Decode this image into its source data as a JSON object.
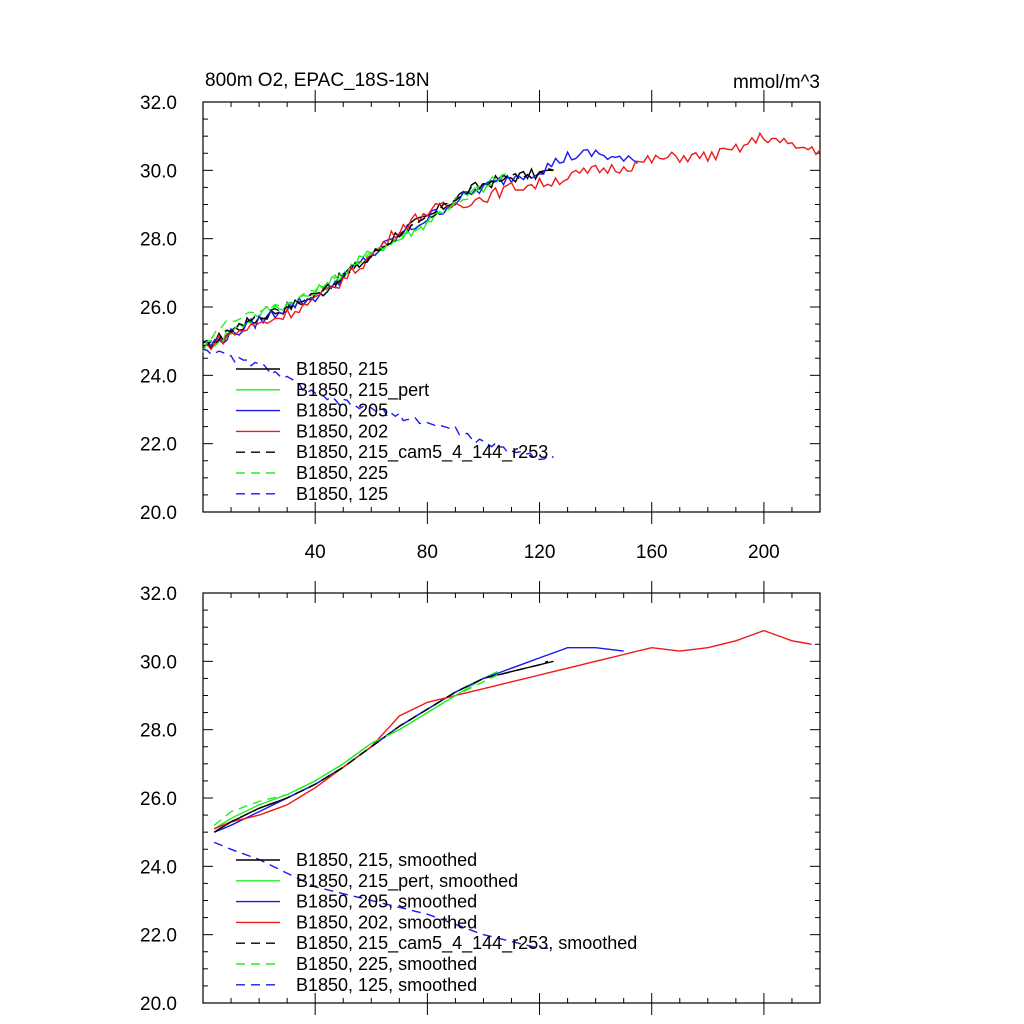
{
  "colors": {
    "black": "#000000",
    "green": "#22ee22",
    "blue": "#1a1aee",
    "red": "#ee1a1a"
  },
  "chart_data": [
    {
      "type": "line",
      "title": "800m O2, EPAC_18S-18N",
      "units": "mmol/m^3",
      "xlim": [
        0,
        220
      ],
      "ylim": [
        20,
        32
      ],
      "y_ticks": [
        "20.0",
        "22.0",
        "24.0",
        "26.0",
        "28.0",
        "30.0",
        "32.0"
      ],
      "x_ticks": [
        "40",
        "80",
        "120",
        "160",
        "200"
      ],
      "legend_position": "bottom-left",
      "series": [
        {
          "name": "B1850, 215",
          "color": "#000000",
          "dash": "solid",
          "x": [
            0,
            10,
            20,
            30,
            40,
            50,
            60,
            70,
            80,
            90,
            100,
            110,
            120,
            125
          ],
          "y": [
            24.8,
            25.3,
            25.7,
            26.0,
            26.3,
            26.9,
            27.5,
            28.2,
            28.6,
            29.2,
            29.6,
            29.8,
            29.9,
            30.0
          ]
        },
        {
          "name": "B1850, 215_pert",
          "color": "#22ee22",
          "dash": "solid",
          "x": [
            0,
            10,
            20,
            30,
            40,
            50,
            60,
            70,
            80,
            90,
            100,
            108
          ],
          "y": [
            24.8,
            25.3,
            25.8,
            26.1,
            26.4,
            27.0,
            27.6,
            28.0,
            28.5,
            29.1,
            29.5,
            29.9
          ]
        },
        {
          "name": "B1850, 205",
          "color": "#1a1aee",
          "dash": "solid",
          "x": [
            0,
            10,
            20,
            30,
            40,
            50,
            60,
            70,
            80,
            90,
            100,
            110,
            120,
            130,
            140,
            150,
            155
          ],
          "y": [
            24.8,
            25.2,
            25.6,
            26.0,
            26.3,
            26.9,
            27.5,
            28.1,
            28.6,
            29.1,
            29.5,
            29.8,
            30.0,
            30.4,
            30.5,
            30.3,
            30.2
          ]
        },
        {
          "name": "B1850, 202",
          "color": "#ee1a1a",
          "dash": "solid",
          "x": [
            0,
            10,
            20,
            30,
            40,
            50,
            60,
            70,
            80,
            90,
            100,
            110,
            120,
            130,
            140,
            150,
            160,
            170,
            180,
            190,
            200,
            210,
            220
          ],
          "y": [
            24.8,
            25.2,
            25.5,
            25.8,
            26.2,
            26.8,
            27.5,
            28.3,
            28.8,
            29.0,
            29.2,
            29.5,
            29.6,
            29.8,
            30.0,
            30.1,
            30.3,
            30.4,
            30.4,
            30.6,
            31.0,
            30.7,
            30.6
          ]
        },
        {
          "name": "B1850, 215_cam5_4_144_r253",
          "color": "#000000",
          "dash": "dashed",
          "x": [
            0,
            10,
            20,
            30,
            40,
            50,
            60,
            70,
            80,
            90,
            100,
            110,
            120,
            125
          ],
          "y": [
            24.8,
            25.3,
            25.7,
            26.0,
            26.4,
            26.9,
            27.5,
            28.1,
            28.6,
            29.2,
            29.6,
            29.8,
            29.9,
            30.0
          ]
        },
        {
          "name": "B1850, 225",
          "color": "#22ee22",
          "dash": "dashed",
          "x": [
            0,
            5,
            10,
            15,
            20,
            30,
            40,
            50,
            60,
            70,
            80,
            90,
            100,
            107
          ],
          "y": [
            24.8,
            25.3,
            25.6,
            25.8,
            25.9,
            26.1,
            26.5,
            27.0,
            27.6,
            28.0,
            28.5,
            29.0,
            29.5,
            29.8
          ]
        },
        {
          "name": "B1850, 125",
          "color": "#1a1aee",
          "dash": "dashed",
          "x": [
            0,
            10,
            20,
            30,
            40,
            50,
            60,
            70,
            80,
            90,
            100,
            110,
            115,
            120,
            125
          ],
          "y": [
            24.8,
            24.5,
            24.3,
            23.9,
            23.4,
            23.2,
            23.0,
            22.8,
            22.6,
            22.4,
            22.0,
            21.8,
            21.7,
            21.6,
            21.6
          ]
        }
      ]
    },
    {
      "type": "line",
      "title": "",
      "units": "",
      "xlim": [
        0,
        220
      ],
      "ylim": [
        20,
        32
      ],
      "y_ticks": [
        "20.0",
        "22.0",
        "24.0",
        "26.0",
        "28.0",
        "30.0",
        "32.0"
      ],
      "x_ticks": [],
      "legend_position": "bottom-left",
      "series": [
        {
          "name": "B1850, 215, smoothed",
          "color": "#000000",
          "dash": "solid",
          "x": [
            4,
            10,
            20,
            30,
            40,
            50,
            60,
            70,
            80,
            90,
            100,
            110,
            120,
            125
          ],
          "y": [
            25.0,
            25.3,
            25.7,
            26.0,
            26.4,
            26.9,
            27.5,
            28.1,
            28.6,
            29.1,
            29.5,
            29.7,
            29.9,
            30.0
          ]
        },
        {
          "name": "B1850, 215_pert, smoothed",
          "color": "#22ee22",
          "dash": "solid",
          "x": [
            4,
            10,
            20,
            30,
            40,
            50,
            60,
            70,
            80,
            90,
            100,
            105
          ],
          "y": [
            25.1,
            25.4,
            25.8,
            26.1,
            26.5,
            27.0,
            27.6,
            28.0,
            28.5,
            29.0,
            29.5,
            29.7
          ]
        },
        {
          "name": "B1850, 205, smoothed",
          "color": "#1a1aee",
          "dash": "solid",
          "x": [
            4,
            10,
            20,
            30,
            40,
            50,
            60,
            70,
            80,
            90,
            100,
            110,
            120,
            130,
            140,
            150
          ],
          "y": [
            25.0,
            25.2,
            25.6,
            26.0,
            26.4,
            26.9,
            27.5,
            28.1,
            28.6,
            29.1,
            29.5,
            29.8,
            30.1,
            30.4,
            30.4,
            30.3
          ]
        },
        {
          "name": "B1850, 202, smoothed",
          "color": "#ee1a1a",
          "dash": "solid",
          "x": [
            4,
            10,
            20,
            30,
            40,
            50,
            60,
            70,
            80,
            90,
            100,
            110,
            120,
            130,
            140,
            150,
            160,
            170,
            180,
            190,
            200,
            210,
            217
          ],
          "y": [
            25.1,
            25.3,
            25.5,
            25.8,
            26.3,
            26.9,
            27.5,
            28.4,
            28.8,
            29.0,
            29.2,
            29.4,
            29.6,
            29.8,
            30.0,
            30.2,
            30.4,
            30.3,
            30.4,
            30.6,
            30.9,
            30.6,
            30.5
          ]
        },
        {
          "name": "B1850, 215_cam5_4_144_r253, smoothed",
          "color": "#000000",
          "dash": "dashed",
          "x": [
            4,
            10,
            20,
            30,
            40,
            50,
            60,
            70,
            80,
            90,
            100,
            110,
            120,
            123
          ],
          "y": [
            25.0,
            25.3,
            25.7,
            26.0,
            26.4,
            26.9,
            27.5,
            28.1,
            28.6,
            29.1,
            29.5,
            29.7,
            29.9,
            30.0
          ]
        },
        {
          "name": "B1850, 225, smoothed",
          "color": "#22ee22",
          "dash": "dashed",
          "x": [
            4,
            10,
            20,
            30,
            40,
            50,
            60,
            70,
            80,
            90,
            100,
            105
          ],
          "y": [
            25.2,
            25.6,
            25.9,
            26.1,
            26.5,
            27.0,
            27.6,
            28.0,
            28.5,
            29.0,
            29.4,
            29.6
          ]
        },
        {
          "name": "B1850, 125, smoothed",
          "color": "#1a1aee",
          "dash": "dashed",
          "x": [
            4,
            10,
            20,
            30,
            40,
            50,
            60,
            70,
            80,
            90,
            100,
            110,
            120,
            123
          ],
          "y": [
            24.7,
            24.5,
            24.2,
            23.8,
            23.4,
            23.2,
            23.0,
            22.8,
            22.6,
            22.3,
            22.0,
            21.8,
            21.6,
            21.6
          ]
        }
      ]
    }
  ]
}
